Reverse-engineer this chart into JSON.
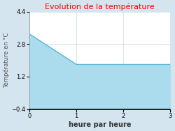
{
  "title": "Evolution de la température",
  "title_color": "#ff0000",
  "xlabel": "heure par heure",
  "ylabel": "Température en °C",
  "xlim": [
    0,
    3
  ],
  "ylim": [
    -0.4,
    4.4
  ],
  "xticks": [
    0,
    1,
    2,
    3
  ],
  "yticks": [
    -0.4,
    1.2,
    2.8,
    4.4
  ],
  "x_data": [
    0,
    1,
    3
  ],
  "y_data": [
    3.3,
    1.8,
    1.8
  ],
  "fill_color": "#aadcee",
  "fill_alpha": 1.0,
  "line_color": "#5bb8d4",
  "line_width": 1.0,
  "background_color": "#d5e5ef",
  "plot_bg_color": "#ffffff",
  "grid_color": "#c8d8e0",
  "fig_width": 2.5,
  "fig_height": 1.88,
  "dpi": 100,
  "title_fontsize": 8,
  "label_fontsize": 6,
  "tick_fontsize": 6
}
